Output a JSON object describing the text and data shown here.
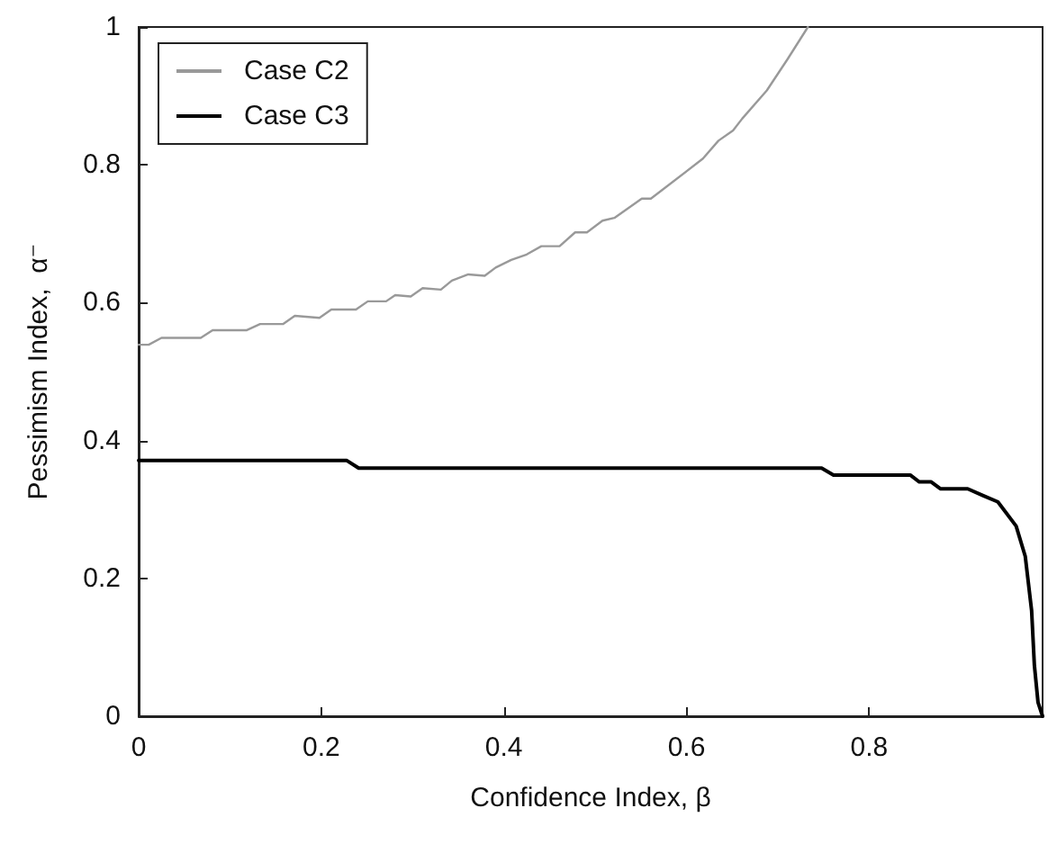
{
  "chart_data": {
    "type": "line",
    "xlabel": "Confidence Index, β",
    "ylabel": "Pessimism Index,  α⁻",
    "xlim": [
      0,
      0.99
    ],
    "xticks": [
      0,
      0.2,
      0.4,
      0.6,
      0.8
    ],
    "ylim": [
      0,
      1
    ],
    "yticks": [
      0,
      0.2,
      0.4,
      0.6,
      0.8,
      1
    ],
    "grid": false,
    "legend": "top left",
    "marker": "none",
    "line_style": "solid",
    "series": [
      {
        "name": "Case C2",
        "color": "#999999",
        "x": [
          0,
          0.011,
          0.025,
          0.068,
          0.081,
          0.118,
          0.133,
          0.158,
          0.171,
          0.198,
          0.211,
          0.238,
          0.251,
          0.271,
          0.281,
          0.298,
          0.311,
          0.331,
          0.343,
          0.361,
          0.379,
          0.391,
          0.408,
          0.425,
          0.441,
          0.461,
          0.478,
          0.491,
          0.508,
          0.521,
          0.551,
          0.561,
          0.618,
          0.635,
          0.651,
          0.661,
          0.688,
          0.711,
          0.733
        ],
        "values": [
          0.539,
          0.539,
          0.549,
          0.549,
          0.56,
          0.56,
          0.569,
          0.569,
          0.581,
          0.578,
          0.59,
          0.59,
          0.602,
          0.602,
          0.611,
          0.609,
          0.621,
          0.619,
          0.632,
          0.641,
          0.639,
          0.651,
          0.662,
          0.67,
          0.682,
          0.682,
          0.702,
          0.702,
          0.719,
          0.723,
          0.751,
          0.751,
          0.809,
          0.835,
          0.85,
          0.867,
          0.908,
          0.954,
          1
        ]
      },
      {
        "name": "Case C3",
        "color": "#000000",
        "x": [
          0,
          0.228,
          0.241,
          0.748,
          0.761,
          0.845,
          0.855,
          0.868,
          0.878,
          0.908,
          0.925,
          0.941,
          0.961,
          0.971,
          0.978,
          0.981,
          0.985,
          0.99
        ],
        "values": [
          0.371,
          0.371,
          0.36,
          0.36,
          0.35,
          0.35,
          0.34,
          0.34,
          0.33,
          0.33,
          0.32,
          0.311,
          0.276,
          0.232,
          0.153,
          0.074,
          0.02,
          0
        ]
      }
    ]
  }
}
